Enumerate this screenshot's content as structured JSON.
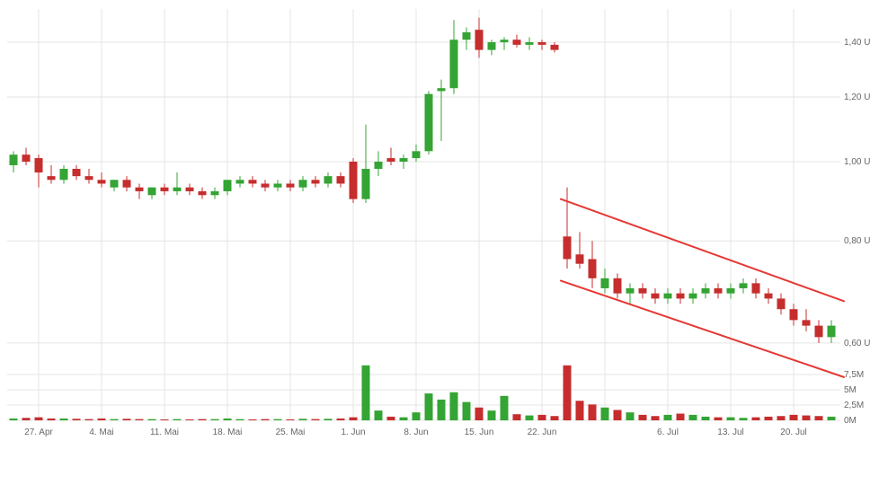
{
  "chart_data": {
    "type": "candlestick",
    "title": "",
    "grid": true,
    "price_axis": {
      "unit": "USD",
      "scale": "log",
      "position": "right",
      "ylim": [
        0.55,
        1.55
      ],
      "ticks": [
        {
          "price": 1.4,
          "label": "1,40 USD"
        },
        {
          "price": 1.2,
          "label": "1,20 USD"
        },
        {
          "price": 1.0,
          "label": "1,00 USD"
        },
        {
          "price": 0.8,
          "label": "0,80 USD"
        },
        {
          "price": 0.6,
          "label": "0,60 USD"
        }
      ]
    },
    "volume_axis": {
      "unit": "M",
      "position": "right",
      "ticks": [
        {
          "value": 7.5,
          "label": "7,5M"
        },
        {
          "value": 5,
          "label": "5M"
        },
        {
          "value": 2.5,
          "label": "2,5M"
        },
        {
          "value": 0,
          "label": "0M"
        }
      ]
    },
    "time_axis": {
      "ticks": [
        {
          "index": 2,
          "label": "27. Apr"
        },
        {
          "index": 7,
          "label": "4. Mai"
        },
        {
          "index": 12,
          "label": "11. Mai"
        },
        {
          "index": 17,
          "label": "18. Mai"
        },
        {
          "index": 22,
          "label": "25. Mai"
        },
        {
          "index": 27,
          "label": "1. Jun"
        },
        {
          "index": 32,
          "label": "8. Jun"
        },
        {
          "index": 37,
          "label": "15. Jun"
        },
        {
          "index": 42,
          "label": "22. Jun"
        },
        {
          "index": 47,
          "label": ""
        },
        {
          "index": 52,
          "label": "6. Jul"
        },
        {
          "index": 57,
          "label": "13. Jul"
        },
        {
          "index": 62,
          "label": "20. Jul"
        }
      ]
    },
    "colors": {
      "up": "#34a434",
      "down": "#c62d2d",
      "trendline": "#e53935",
      "grid": "#e4e4e4",
      "axis_text": "#666666",
      "background": "#ffffff"
    },
    "candles": [
      {
        "d": "23. Apr",
        "o": 0.99,
        "h": 1.03,
        "l": 0.97,
        "c": 1.02,
        "v": 0.3
      },
      {
        "d": "24. Apr",
        "o": 1.02,
        "h": 1.04,
        "l": 0.99,
        "c": 1.0,
        "v": 0.4
      },
      {
        "d": "27. Apr",
        "o": 1.01,
        "h": 1.02,
        "l": 0.93,
        "c": 0.97,
        "v": 0.5
      },
      {
        "d": "28. Apr",
        "o": 0.96,
        "h": 0.99,
        "l": 0.94,
        "c": 0.95,
        "v": 0.3
      },
      {
        "d": "29. Apr",
        "o": 0.95,
        "h": 0.99,
        "l": 0.94,
        "c": 0.98,
        "v": 0.3
      },
      {
        "d": "30. Apr",
        "o": 0.98,
        "h": 0.99,
        "l": 0.95,
        "c": 0.96,
        "v": 0.25
      },
      {
        "d": "1. Mai",
        "o": 0.96,
        "h": 0.98,
        "l": 0.94,
        "c": 0.95,
        "v": 0.2
      },
      {
        "d": "4. Mai",
        "o": 0.95,
        "h": 0.97,
        "l": 0.93,
        "c": 0.94,
        "v": 0.3
      },
      {
        "d": "5. Mai",
        "o": 0.93,
        "h": 0.95,
        "l": 0.92,
        "c": 0.95,
        "v": 0.2
      },
      {
        "d": "6. Mai",
        "o": 0.95,
        "h": 0.96,
        "l": 0.92,
        "c": 0.93,
        "v": 0.25
      },
      {
        "d": "7. Mai",
        "o": 0.93,
        "h": 0.94,
        "l": 0.9,
        "c": 0.92,
        "v": 0.2
      },
      {
        "d": "8. Mai",
        "o": 0.91,
        "h": 0.93,
        "l": 0.9,
        "c": 0.93,
        "v": 0.2
      },
      {
        "d": "11. Mai",
        "o": 0.93,
        "h": 0.94,
        "l": 0.91,
        "c": 0.92,
        "v": 0.15
      },
      {
        "d": "12. Mai",
        "o": 0.92,
        "h": 0.97,
        "l": 0.91,
        "c": 0.93,
        "v": 0.2
      },
      {
        "d": "13. Mai",
        "o": 0.93,
        "h": 0.94,
        "l": 0.91,
        "c": 0.92,
        "v": 0.15
      },
      {
        "d": "14. Mai",
        "o": 0.92,
        "h": 0.93,
        "l": 0.9,
        "c": 0.91,
        "v": 0.2
      },
      {
        "d": "15. Mai",
        "o": 0.91,
        "h": 0.93,
        "l": 0.9,
        "c": 0.92,
        "v": 0.2
      },
      {
        "d": "18. Mai",
        "o": 0.92,
        "h": 0.95,
        "l": 0.91,
        "c": 0.95,
        "v": 0.3
      },
      {
        "d": "19. Mai",
        "o": 0.94,
        "h": 0.96,
        "l": 0.93,
        "c": 0.95,
        "v": 0.2
      },
      {
        "d": "20. Mai",
        "o": 0.95,
        "h": 0.96,
        "l": 0.93,
        "c": 0.94,
        "v": 0.15
      },
      {
        "d": "21. Mai",
        "o": 0.94,
        "h": 0.95,
        "l": 0.92,
        "c": 0.93,
        "v": 0.2
      },
      {
        "d": "22. Mai",
        "o": 0.93,
        "h": 0.95,
        "l": 0.92,
        "c": 0.94,
        "v": 0.2
      },
      {
        "d": "25. Mai",
        "o": 0.94,
        "h": 0.95,
        "l": 0.92,
        "c": 0.93,
        "v": 0.15
      },
      {
        "d": "26. Mai",
        "o": 0.93,
        "h": 0.96,
        "l": 0.92,
        "c": 0.95,
        "v": 0.25
      },
      {
        "d": "27. Mai",
        "o": 0.95,
        "h": 0.96,
        "l": 0.93,
        "c": 0.94,
        "v": 0.2
      },
      {
        "d": "28. Mai",
        "o": 0.94,
        "h": 0.97,
        "l": 0.93,
        "c": 0.96,
        "v": 0.25
      },
      {
        "d": "29. Mai",
        "o": 0.96,
        "h": 0.97,
        "l": 0.93,
        "c": 0.94,
        "v": 0.3
      },
      {
        "d": "1. Jun",
        "o": 1.0,
        "h": 1.01,
        "l": 0.89,
        "c": 0.9,
        "v": 0.5
      },
      {
        "d": "2. Jun",
        "o": 0.9,
        "h": 1.11,
        "l": 0.89,
        "c": 0.98,
        "v": 9.0
      },
      {
        "d": "3. Jun",
        "o": 0.98,
        "h": 1.03,
        "l": 0.96,
        "c": 1.0,
        "v": 1.6
      },
      {
        "d": "4. Jun",
        "o": 1.01,
        "h": 1.04,
        "l": 0.99,
        "c": 1.0,
        "v": 0.6
      },
      {
        "d": "5. Jun",
        "o": 1.0,
        "h": 1.02,
        "l": 0.98,
        "c": 1.01,
        "v": 0.5
      },
      {
        "d": "8. Jun",
        "o": 1.01,
        "h": 1.05,
        "l": 1.0,
        "c": 1.03,
        "v": 1.3
      },
      {
        "d": "9. Jun",
        "o": 1.03,
        "h": 1.22,
        "l": 1.02,
        "c": 1.21,
        "v": 4.4
      },
      {
        "d": "10. Jun",
        "o": 1.22,
        "h": 1.26,
        "l": 1.06,
        "c": 1.23,
        "v": 3.4
      },
      {
        "d": "11. Jun",
        "o": 1.23,
        "h": 1.49,
        "l": 1.21,
        "c": 1.41,
        "v": 4.6
      },
      {
        "d": "12. Jun",
        "o": 1.41,
        "h": 1.46,
        "l": 1.37,
        "c": 1.44,
        "v": 3.0
      },
      {
        "d": "15. Jun",
        "o": 1.45,
        "h": 1.5,
        "l": 1.34,
        "c": 1.37,
        "v": 2.1
      },
      {
        "d": "16. Jun",
        "o": 1.37,
        "h": 1.41,
        "l": 1.35,
        "c": 1.4,
        "v": 1.6
      },
      {
        "d": "17. Jun",
        "o": 1.4,
        "h": 1.42,
        "l": 1.37,
        "c": 1.41,
        "v": 4.0
      },
      {
        "d": "18. Jun",
        "o": 1.41,
        "h": 1.43,
        "l": 1.38,
        "c": 1.39,
        "v": 1.0
      },
      {
        "d": "19. Jun",
        "o": 1.39,
        "h": 1.42,
        "l": 1.37,
        "c": 1.4,
        "v": 0.8
      },
      {
        "d": "22. Jun",
        "o": 1.4,
        "h": 1.41,
        "l": 1.37,
        "c": 1.39,
        "v": 0.9
      },
      {
        "d": "23. Jun",
        "o": 1.39,
        "h": 1.4,
        "l": 1.36,
        "c": 1.37,
        "v": 0.7
      },
      {
        "d": "24. Jun",
        "o": 0.81,
        "h": 0.93,
        "l": 0.74,
        "c": 0.76,
        "v": 9.0
      },
      {
        "d": "25. Jun",
        "o": 0.77,
        "h": 0.82,
        "l": 0.74,
        "c": 0.75,
        "v": 3.2
      },
      {
        "d": "26. Jun",
        "o": 0.76,
        "h": 0.8,
        "l": 0.7,
        "c": 0.72,
        "v": 2.6
      },
      {
        "d": "29. Jun",
        "o": 0.7,
        "h": 0.74,
        "l": 0.69,
        "c": 0.72,
        "v": 2.1
      },
      {
        "d": "30. Jun",
        "o": 0.72,
        "h": 0.73,
        "l": 0.68,
        "c": 0.69,
        "v": 1.7
      },
      {
        "d": "1. Jul",
        "o": 0.69,
        "h": 0.71,
        "l": 0.67,
        "c": 0.7,
        "v": 1.3
      },
      {
        "d": "2. Jul",
        "o": 0.7,
        "h": 0.71,
        "l": 0.68,
        "c": 0.69,
        "v": 0.9
      },
      {
        "d": "3. Jul",
        "o": 0.69,
        "h": 0.7,
        "l": 0.67,
        "c": 0.68,
        "v": 0.7
      },
      {
        "d": "6. Jul",
        "o": 0.68,
        "h": 0.7,
        "l": 0.67,
        "c": 0.69,
        "v": 0.9
      },
      {
        "d": "7. Jul",
        "o": 0.69,
        "h": 0.7,
        "l": 0.67,
        "c": 0.68,
        "v": 1.1
      },
      {
        "d": "8. Jul",
        "o": 0.68,
        "h": 0.7,
        "l": 0.67,
        "c": 0.69,
        "v": 0.9
      },
      {
        "d": "9. Jul",
        "o": 0.69,
        "h": 0.71,
        "l": 0.68,
        "c": 0.7,
        "v": 0.6
      },
      {
        "d": "10. Jul",
        "o": 0.7,
        "h": 0.71,
        "l": 0.68,
        "c": 0.69,
        "v": 0.5
      },
      {
        "d": "13. Jul",
        "o": 0.69,
        "h": 0.71,
        "l": 0.68,
        "c": 0.7,
        "v": 0.5
      },
      {
        "d": "14. Jul",
        "o": 0.7,
        "h": 0.72,
        "l": 0.69,
        "c": 0.71,
        "v": 0.4
      },
      {
        "d": "15. Jul",
        "o": 0.71,
        "h": 0.72,
        "l": 0.68,
        "c": 0.69,
        "v": 0.5
      },
      {
        "d": "16. Jul",
        "o": 0.69,
        "h": 0.7,
        "l": 0.67,
        "c": 0.68,
        "v": 0.6
      },
      {
        "d": "17. Jul",
        "o": 0.68,
        "h": 0.69,
        "l": 0.65,
        "c": 0.66,
        "v": 0.7
      },
      {
        "d": "20. Jul",
        "o": 0.66,
        "h": 0.67,
        "l": 0.63,
        "c": 0.64,
        "v": 0.9
      },
      {
        "d": "21. Jul",
        "o": 0.64,
        "h": 0.66,
        "l": 0.62,
        "c": 0.63,
        "v": 0.8
      },
      {
        "d": "22. Jul",
        "o": 0.63,
        "h": 0.64,
        "l": 0.6,
        "c": 0.61,
        "v": 0.7
      },
      {
        "d": "23. Jul",
        "o": 0.61,
        "h": 0.64,
        "l": 0.6,
        "c": 0.63,
        "v": 0.6
      }
    ],
    "annotations": {
      "channel": [
        {
          "i1": 43.5,
          "p1": 0.9,
          "i2": 66,
          "p2": 0.675
        },
        {
          "i1": 43.5,
          "p1": 0.715,
          "i2": 66,
          "p2": 0.545
        }
      ]
    }
  }
}
